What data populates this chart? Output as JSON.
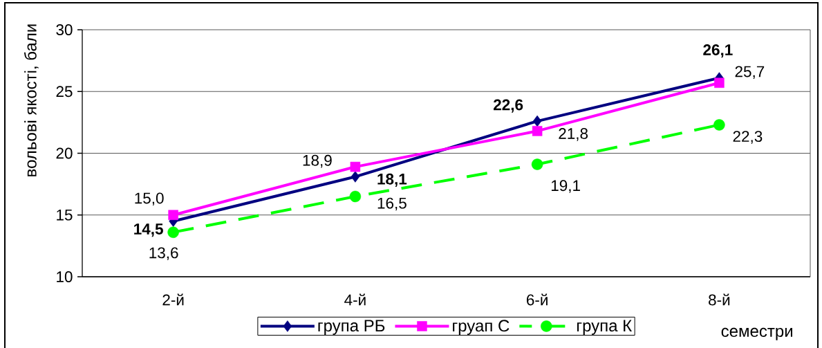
{
  "chart_data": {
    "type": "line",
    "xlabel": "семестри",
    "ylabel": "вольові якості, бали",
    "categories": [
      "2-й",
      "4-й",
      "6-й",
      "8-й"
    ],
    "series": [
      {
        "name": "група РБ",
        "color": "#000080",
        "marker": "diamond",
        "line_style": "solid",
        "values": [
          14.5,
          18.1,
          22.6,
          26.1
        ],
        "value_labels": [
          "14,5",
          "18,1",
          "22,6",
          "26,1"
        ]
      },
      {
        "name": "груап С",
        "color": "#ff00ff",
        "marker": "square",
        "line_style": "solid",
        "values": [
          15.0,
          18.9,
          21.8,
          25.7
        ],
        "value_labels": [
          "15,0",
          "18,9",
          "21,8",
          "25,7"
        ]
      },
      {
        "name": "група К",
        "color": "#00ff00",
        "marker": "circle",
        "line_style": "dashed",
        "values": [
          13.6,
          16.5,
          19.1,
          22.3
        ],
        "value_labels": [
          "13,6",
          "16,5",
          "19,1",
          "22,3"
        ]
      }
    ],
    "ylim": [
      10,
      30
    ],
    "yticks": [
      10,
      15,
      20,
      25,
      30
    ],
    "grid": "y",
    "legend": "bottom"
  }
}
